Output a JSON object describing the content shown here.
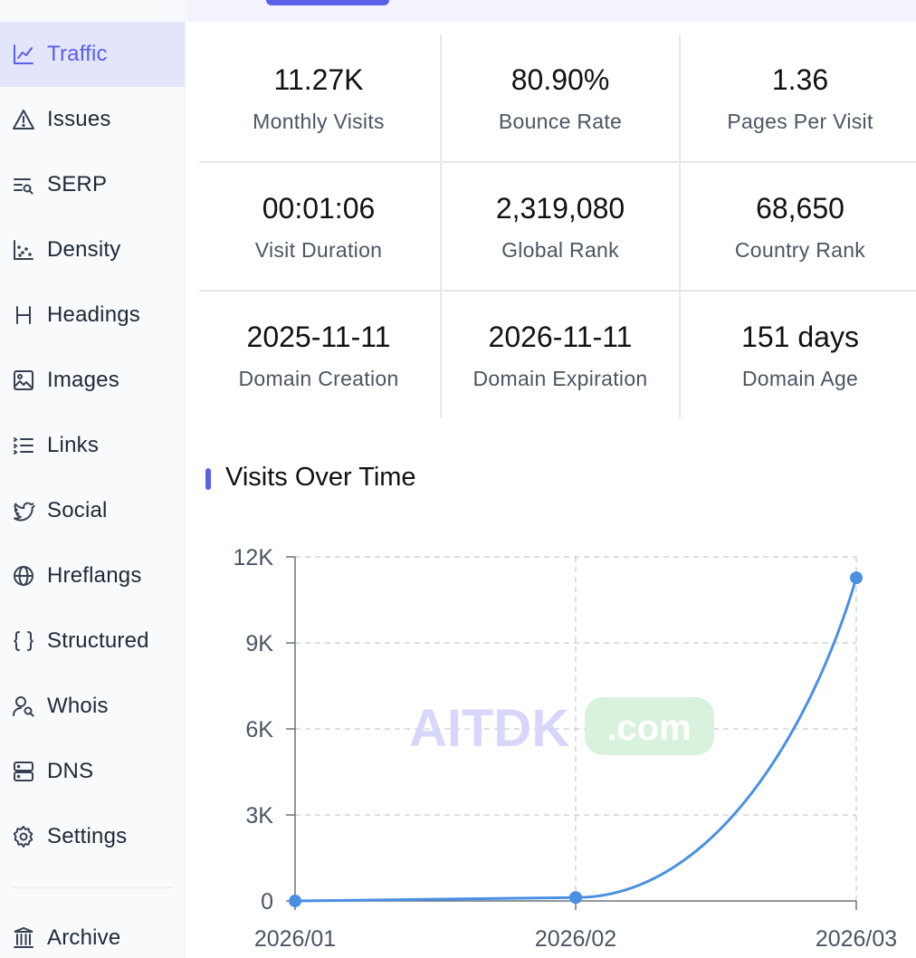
{
  "sidebar": {
    "items": [
      {
        "label": "Traffic",
        "icon": "line-chart-icon",
        "active": true
      },
      {
        "label": "Issues",
        "icon": "warning-icon"
      },
      {
        "label": "SERP",
        "icon": "search-list-icon"
      },
      {
        "label": "Density",
        "icon": "scatter-icon"
      },
      {
        "label": "Headings",
        "icon": "heading-icon"
      },
      {
        "label": "Images",
        "icon": "image-icon"
      },
      {
        "label": "Links",
        "icon": "ordered-list-icon"
      },
      {
        "label": "Social",
        "icon": "twitter-icon"
      },
      {
        "label": "Hreflangs",
        "icon": "globe-icon"
      },
      {
        "label": "Structured",
        "icon": "braces-icon"
      },
      {
        "label": "Whois",
        "icon": "user-search-icon"
      },
      {
        "label": "DNS",
        "icon": "server-icon"
      },
      {
        "label": "Settings",
        "icon": "gear-icon"
      },
      {
        "label": "Archive",
        "icon": "archive-icon"
      }
    ]
  },
  "stats": [
    {
      "value": "11.27K",
      "label": "Monthly Visits"
    },
    {
      "value": "80.90%",
      "label": "Bounce Rate"
    },
    {
      "value": "1.36",
      "label": "Pages Per Visit"
    },
    {
      "value": "00:01:06",
      "label": "Visit Duration"
    },
    {
      "value": "2,319,080",
      "label": "Global Rank"
    },
    {
      "value": "68,650",
      "label": "Country Rank"
    },
    {
      "value": "2025-11-11",
      "label": "Domain Creation"
    },
    {
      "value": "2026-11-11",
      "label": "Domain Expiration"
    },
    {
      "value": "151 days",
      "label": "Domain Age"
    }
  ],
  "watermark": {
    "brand": "AITDK",
    "suffix": ".com"
  },
  "colors": {
    "accent": "#5b5fe8",
    "line": "#4a90e2"
  },
  "chart_data": {
    "type": "line",
    "title": "Visits Over Time",
    "x": [
      "2026/01",
      "2026/02",
      "2026/03"
    ],
    "series": [
      {
        "values": [
          0,
          120,
          11270
        ]
      }
    ],
    "ylim": [
      0,
      12000
    ],
    "yticks": [
      "0",
      "3K",
      "6K",
      "9K",
      "12K"
    ],
    "grid": true
  }
}
